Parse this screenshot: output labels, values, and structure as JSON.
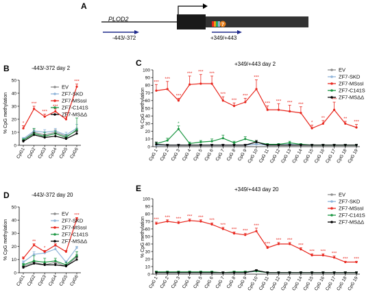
{
  "panel_a": {
    "letter": "A",
    "gene": "PLOD2",
    "region1": "-443/-372",
    "region2": "+349/+443",
    "marker": "7"
  },
  "colors": {
    "EV": "#8c8c8c",
    "ZF7-SKD": "#8fb4d9",
    "ZF7-MSssI": "#e8251c",
    "ZF7-C141S": "#1a9641",
    "ZF7-MSΔΔ": "#000000"
  },
  "chart_data": [
    {
      "id": "B",
      "letter": "B",
      "type": "line",
      "title": "-443/-372 day 2",
      "xlabel": "",
      "ylabel": "% CpG methylation",
      "ylim": [
        0,
        50
      ],
      "yticks": [
        0,
        10,
        20,
        30,
        40,
        50
      ],
      "categories": [
        "CpG1",
        "CpG2",
        "CpG3",
        "CpG4",
        "CpG5",
        "CpG6"
      ],
      "legend_position": "top-right",
      "series": [
        {
          "name": "EV",
          "values": [
            4,
            10,
            8,
            10,
            7,
            11
          ],
          "err": [
            1,
            2,
            2,
            2,
            1,
            2
          ]
        },
        {
          "name": "ZF7-SKD",
          "values": [
            5,
            11,
            10,
            11,
            8,
            13
          ],
          "err": [
            1,
            2,
            2,
            2,
            2,
            3
          ]
        },
        {
          "name": "ZF7-MSssI",
          "values": [
            13,
            28,
            22,
            26,
            20,
            45
          ],
          "err": [
            2,
            2,
            2,
            2,
            2,
            2
          ]
        },
        {
          "name": "ZF7-C141S",
          "values": [
            4,
            9,
            7,
            9,
            6,
            12
          ],
          "err": [
            1,
            4,
            3,
            2,
            2,
            9
          ]
        },
        {
          "name": "ZF7-MSΔΔ",
          "values": [
            3,
            8,
            6,
            7,
            5,
            9
          ],
          "err": [
            1,
            2,
            2,
            2,
            1,
            2
          ]
        }
      ],
      "significance": {
        "series": "ZF7-MSssI",
        "labels": [
          "*",
          "***",
          "***",
          "***",
          "**",
          "***"
        ]
      }
    },
    {
      "id": "C",
      "letter": "C",
      "type": "line",
      "title": "+349/+443 day 2",
      "xlabel": "",
      "ylabel": "% CpG methylation",
      "ylim": [
        0,
        100
      ],
      "yticks": [
        0,
        10,
        20,
        30,
        40,
        50,
        60,
        70,
        80,
        90,
        100
      ],
      "categories": [
        "CpG 1",
        "CpG 2",
        "CpG 3",
        "CpG 4",
        "CpG 5",
        "CpG 6",
        "CpG 7",
        "CpG 8",
        "CpG 9",
        "CpG 10",
        "CpG 11",
        "CpG 12",
        "CpG 13",
        "CpG 14",
        "CpG 15",
        "CpG 16",
        "CpG 17",
        "CpG 18",
        "CpG 19"
      ],
      "legend_position": "top-right",
      "series": [
        {
          "name": "EV",
          "values": [
            2,
            2,
            2,
            2,
            2,
            2,
            2,
            2,
            2,
            3,
            2,
            2,
            2,
            2,
            2,
            2,
            2,
            2,
            2
          ],
          "err": [
            1,
            1,
            1,
            1,
            1,
            1,
            1,
            1,
            1,
            1,
            1,
            1,
            1,
            1,
            1,
            1,
            1,
            1,
            1
          ]
        },
        {
          "name": "ZF7-SKD",
          "values": [
            2,
            2,
            2,
            2,
            2,
            2,
            2,
            2,
            2,
            3,
            2,
            2,
            3,
            2,
            2,
            2,
            2,
            2,
            2
          ],
          "err": [
            1,
            1,
            1,
            1,
            1,
            1,
            1,
            1,
            1,
            1,
            1,
            1,
            1,
            1,
            1,
            1,
            1,
            1,
            1
          ]
        },
        {
          "name": "ZF7-MSssI",
          "values": [
            73,
            75,
            60,
            81,
            82,
            82,
            60,
            53,
            58,
            75,
            48,
            48,
            46,
            44,
            24,
            30,
            48,
            30,
            25
          ],
          "err": [
            8,
            10,
            3,
            11,
            12,
            10,
            5,
            4,
            5,
            12,
            5,
            8,
            8,
            8,
            4,
            4,
            10,
            3,
            4
          ]
        },
        {
          "name": "ZF7-C141S",
          "values": [
            4,
            8,
            23,
            4,
            6,
            7,
            11,
            5,
            10,
            6,
            3,
            3,
            5,
            3,
            2,
            2,
            2,
            2,
            2
          ],
          "err": [
            2,
            3,
            4,
            2,
            2,
            3,
            4,
            2,
            3,
            2,
            1,
            1,
            2,
            1,
            1,
            1,
            1,
            1,
            1
          ]
        },
        {
          "name": "ZF7-MSΔΔ",
          "values": [
            3,
            2,
            2,
            2,
            2,
            2,
            2,
            2,
            2,
            6,
            2,
            2,
            2,
            2,
            2,
            2,
            2,
            2,
            2
          ],
          "err": [
            3,
            1,
            1,
            1,
            1,
            1,
            1,
            1,
            1,
            2,
            1,
            1,
            1,
            1,
            1,
            1,
            1,
            1,
            1
          ]
        }
      ],
      "significance": {
        "series": "ZF7-MSssI",
        "labels": [
          "***",
          "***",
          "***",
          "***",
          "***",
          "***",
          "***",
          "***",
          "***",
          "***",
          "***",
          "***",
          "***",
          "***",
          "*",
          "**",
          "***",
          "**",
          "***"
        ]
      },
      "extra_marks": [
        {
          "series": "ZF7-C141S",
          "index": 2,
          "label": "*"
        }
      ]
    },
    {
      "id": "D",
      "letter": "D",
      "type": "line",
      "title": "-443/-372 day 20",
      "xlabel": "",
      "ylabel": "% CpG methylation",
      "ylim": [
        0,
        50
      ],
      "yticks": [
        0,
        10,
        20,
        30,
        40,
        50
      ],
      "categories": [
        "CpG1",
        "CpG2",
        "CpG3",
        "CpG4",
        "CpG5",
        "CpG6"
      ],
      "legend_position": "top-right",
      "series": [
        {
          "name": "EV",
          "values": [
            5,
            8,
            6,
            8,
            5,
            12
          ],
          "err": [
            1,
            1,
            1,
            1,
            1,
            2
          ]
        },
        {
          "name": "ZF7-SKD",
          "values": [
            8,
            14,
            15,
            18,
            8,
            19
          ],
          "err": [
            1,
            2,
            2,
            2,
            1,
            1
          ]
        },
        {
          "name": "ZF7-MSssI",
          "values": [
            11,
            21,
            16,
            21,
            16,
            41
          ],
          "err": [
            1,
            1,
            1,
            1,
            1,
            1
          ]
        },
        {
          "name": "ZF7-C141S",
          "values": [
            6,
            9,
            8,
            9,
            6,
            13
          ],
          "err": [
            1,
            4,
            3,
            2,
            2,
            3
          ]
        },
        {
          "name": "ZF7-MSΔΔ",
          "values": [
            4,
            7,
            6,
            6,
            5,
            10
          ],
          "err": [
            1,
            1,
            1,
            1,
            1,
            2
          ]
        }
      ],
      "significance": {
        "series": "ZF7-MSssI",
        "labels": [
          "",
          "**",
          "*",
          "",
          "",
          "***"
        ]
      }
    },
    {
      "id": "E",
      "letter": "E",
      "type": "line",
      "title": "+349/+443 day 20",
      "xlabel": "",
      "ylabel": "% CpG methylation",
      "ylim": [
        0,
        100
      ],
      "yticks": [
        0,
        10,
        20,
        30,
        40,
        50,
        60,
        70,
        80,
        90,
        100
      ],
      "categories": [
        "CpG 1",
        "CpG 2",
        "CpG 3",
        "CpG 4",
        "CpG 5",
        "CpG 6",
        "CpG 7",
        "CpG 8",
        "CpG 9",
        "CpG 10",
        "CpG 11",
        "CpG 12",
        "CpG 13",
        "CpG 14",
        "CpG 15",
        "CpG 16",
        "CpG 17",
        "CpG 18",
        "CpG 19"
      ],
      "legend_position": "top-right",
      "series": [
        {
          "name": "EV",
          "values": [
            2,
            2,
            2,
            2,
            2,
            2,
            2,
            2,
            2,
            4,
            2,
            2,
            2,
            2,
            2,
            2,
            2,
            2,
            2
          ],
          "err": [
            1,
            1,
            1,
            1,
            1,
            1,
            1,
            1,
            1,
            1,
            1,
            1,
            1,
            1,
            1,
            1,
            1,
            1,
            1
          ]
        },
        {
          "name": "ZF7-SKD",
          "values": [
            2,
            2,
            2,
            2,
            2,
            2,
            2,
            2,
            2,
            4,
            2,
            2,
            2,
            2,
            2,
            2,
            2,
            2,
            2
          ],
          "err": [
            1,
            1,
            1,
            1,
            1,
            1,
            1,
            1,
            1,
            1,
            1,
            1,
            1,
            1,
            1,
            1,
            1,
            1,
            1
          ]
        },
        {
          "name": "ZF7-MSssI",
          "values": [
            67,
            70,
            68,
            71,
            70,
            66,
            60,
            54,
            52,
            57,
            35,
            40,
            40,
            33,
            25,
            25,
            22,
            16,
            16
          ],
          "err": [
            2,
            2,
            2,
            2,
            2,
            2,
            2,
            2,
            2,
            4,
            2,
            2,
            2,
            2,
            2,
            2,
            2,
            1,
            1
          ]
        },
        {
          "name": "ZF7-C141S",
          "values": [
            3,
            3,
            3,
            3,
            3,
            3,
            2,
            3,
            3,
            4,
            2,
            2,
            2,
            2,
            2,
            2,
            2,
            2,
            2
          ],
          "err": [
            1,
            1,
            1,
            1,
            1,
            1,
            1,
            1,
            1,
            1,
            1,
            1,
            1,
            1,
            1,
            1,
            1,
            1,
            1
          ]
        },
        {
          "name": "ZF7-MSΔΔ",
          "values": [
            2,
            2,
            2,
            2,
            2,
            2,
            2,
            2,
            2,
            5,
            2,
            2,
            2,
            2,
            2,
            2,
            2,
            2,
            2
          ],
          "err": [
            1,
            1,
            1,
            1,
            1,
            1,
            1,
            1,
            1,
            1,
            1,
            1,
            1,
            1,
            1,
            1,
            1,
            1,
            1
          ]
        }
      ],
      "significance": {
        "series": "ZF7-MSssI",
        "labels": [
          "***",
          "***",
          "***",
          "***",
          "***",
          "***",
          "***",
          "***",
          "***",
          "***",
          "***",
          "***",
          "***",
          "***",
          "***",
          "***",
          "***",
          "***",
          "***"
        ]
      }
    }
  ]
}
